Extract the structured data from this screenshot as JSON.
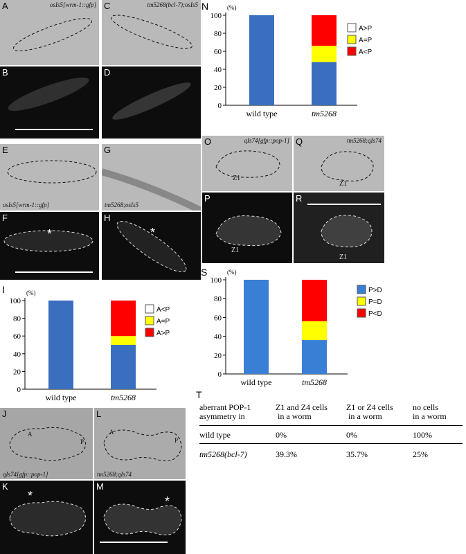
{
  "panels": {
    "A": {
      "label": "A",
      "caption": "osIs5[wrm-1::gfp]"
    },
    "B": {
      "label": "B"
    },
    "C": {
      "label": "C",
      "caption": "tm5268(bcl-7);osIs5"
    },
    "D": {
      "label": "D"
    },
    "E": {
      "label": "E"
    },
    "F": {
      "label": "F",
      "caption": "osIs5[wrm-1::gfp]"
    },
    "G": {
      "label": "G"
    },
    "H": {
      "label": "H",
      "caption": "tm5268;osIs5"
    },
    "J": {
      "label": "J",
      "caption": "qIs74[gfp::pop-1]",
      "a": "A",
      "p": "P"
    },
    "K": {
      "label": "K"
    },
    "L": {
      "label": "L",
      "caption": "tm5268;qIs74",
      "a": "A",
      "p": "P"
    },
    "M": {
      "label": "M"
    },
    "O": {
      "label": "O",
      "caption": "qIs74[gfp::pop-1]",
      "z": "Z1"
    },
    "P": {
      "label": "P",
      "z": "Z1"
    },
    "Q": {
      "label": "Q",
      "caption": "tm5268;qIs74",
      "z": "Z1"
    },
    "R": {
      "label": "R",
      "z": "Z1"
    },
    "asterisk": "*"
  },
  "chart_data": [
    {
      "id": "N",
      "type": "bar",
      "stacked": true,
      "categories": [
        "wild type",
        "tm5268"
      ],
      "yunit": "(%)",
      "ylim": [
        0,
        100
      ],
      "yticks": [
        0,
        20,
        40,
        60,
        80,
        100
      ],
      "series": [
        {
          "name": "A>P",
          "color": "#ffffff",
          "values": [
            0,
            0
          ]
        },
        {
          "name": "A=P",
          "color": "#ffff00",
          "values": [
            0,
            18
          ]
        },
        {
          "name": "A<P",
          "color": "#ff0000",
          "values": [
            0,
            34
          ]
        }
      ],
      "base": {
        "color": "#3a6fbf",
        "values": [
          100,
          48
        ]
      },
      "legend": "right"
    },
    {
      "id": "I",
      "type": "bar",
      "stacked": true,
      "categories": [
        "wild type",
        "tm5268"
      ],
      "yunit": "(%)",
      "ylim": [
        0,
        100
      ],
      "yticks": [
        0,
        20,
        40,
        60,
        80,
        100
      ],
      "series": [
        {
          "name": "A<P",
          "color": "#ffffff",
          "values": [
            0,
            0
          ]
        },
        {
          "name": "A=P",
          "color": "#ffff00",
          "values": [
            0,
            10
          ]
        },
        {
          "name": "A>P",
          "color": "#ff0000",
          "values": [
            0,
            40
          ]
        }
      ],
      "base": {
        "color": "#3a6fbf",
        "values": [
          100,
          50
        ]
      },
      "legend": "right"
    },
    {
      "id": "S",
      "type": "bar",
      "stacked": true,
      "categories": [
        "wild type",
        "tm5268"
      ],
      "yunit": "(%)",
      "ylim": [
        0,
        100
      ],
      "yticks": [
        0,
        20,
        40,
        60,
        80,
        100
      ],
      "series": [
        {
          "name": "P=D",
          "color": "#ffff00",
          "values": [
            0,
            20
          ]
        },
        {
          "name": "P<D",
          "color": "#ff0000",
          "values": [
            0,
            44
          ]
        }
      ],
      "base": {
        "name": "P>D",
        "color": "#3a7fd6",
        "values": [
          100,
          36
        ]
      },
      "legend_order": [
        "P>D",
        "P=D",
        "P<D"
      ],
      "legend": "right"
    }
  ],
  "table": {
    "label": "T",
    "header": [
      "aberrant POP-1\nasymmetry in",
      "Z1 and Z4 cells\n in a worm",
      "Z1 or Z4 cells\n in a worm",
      "no cells\nin a worm"
    ],
    "rows": [
      [
        "wild type",
        "0%",
        "0%",
        "100%"
      ],
      [
        "tm5268(bcl-7)",
        "39.3%",
        "35.7%",
        "25%"
      ]
    ]
  }
}
